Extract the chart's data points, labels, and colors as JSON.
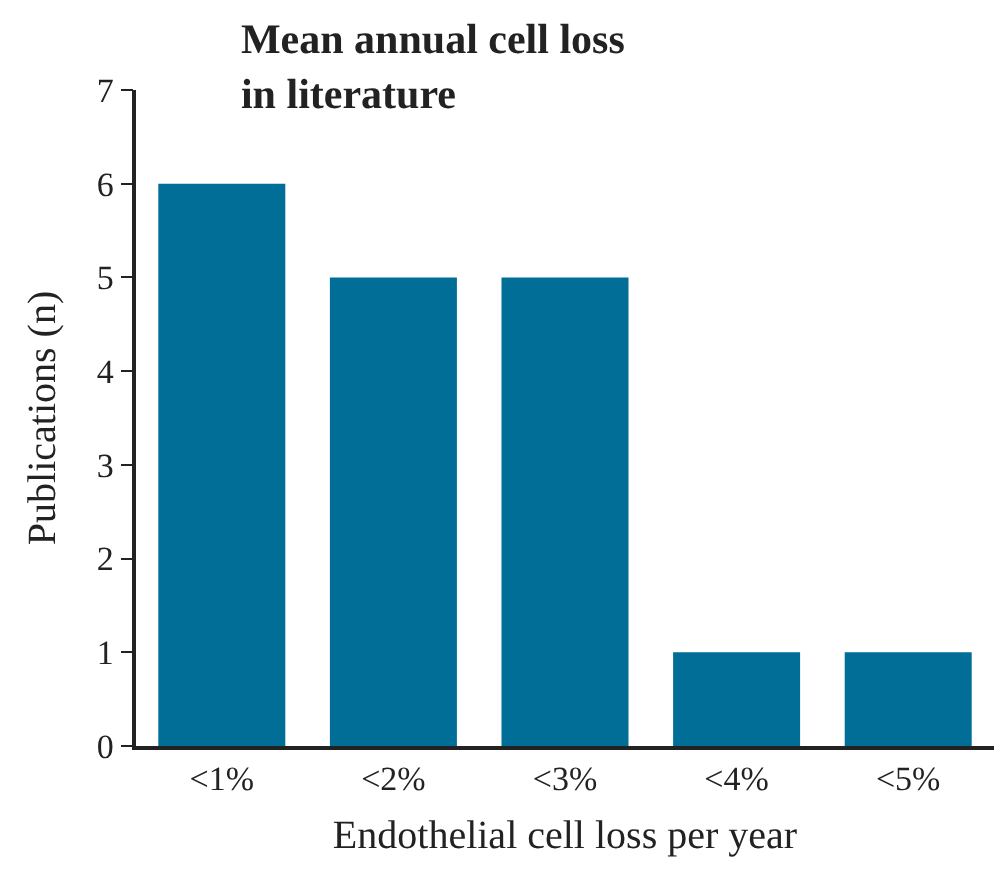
{
  "chart_data": {
    "type": "bar",
    "title": "Mean annual cell loss\nin literature",
    "xlabel": "Endothelial cell loss per year",
    "ylabel": "Publications (n)",
    "categories": [
      "<1%",
      "<2%",
      "<3%",
      "<4%",
      "<5%"
    ],
    "values": [
      6,
      5,
      5,
      1,
      1
    ],
    "color": "#006e96",
    "ylim": [
      0,
      7
    ],
    "yticks": [
      0,
      1,
      2,
      3,
      4,
      5,
      6,
      7
    ]
  }
}
